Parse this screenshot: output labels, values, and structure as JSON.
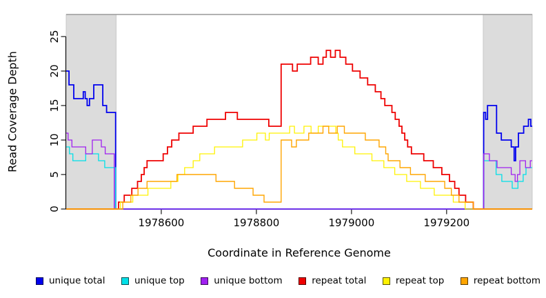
{
  "chart_data": {
    "type": "line",
    "subtype": "step",
    "title": "",
    "xlabel": "Coordinate in Reference Genome",
    "ylabel": "Read Coverage Depth",
    "xlim": [
      1978400,
      1979380
    ],
    "ylim": [
      0,
      28.2
    ],
    "xticks": [
      1978600,
      1978800,
      1979000,
      1979200
    ],
    "yticks": [
      0,
      5,
      10,
      15,
      20,
      25
    ],
    "grid": false,
    "legend_position": "bottom",
    "band_color": "#DCDCDC",
    "band_border": "#C8C8C8",
    "frame_top_color": "#999999",
    "axis_color": "#000000",
    "shaded_regions": [
      {
        "x0": 1978400,
        "x1": 1978505
      },
      {
        "x0": 1979277,
        "x1": 1979380
      }
    ],
    "series": [
      {
        "name": "unique total",
        "color": "#0000EE",
        "width": 1.8,
        "points": [
          [
            1978400,
            20
          ],
          [
            1978406,
            18
          ],
          [
            1978416,
            16
          ],
          [
            1978436,
            17
          ],
          [
            1978440,
            16
          ],
          [
            1978444,
            15
          ],
          [
            1978449,
            16
          ],
          [
            1978458,
            18
          ],
          [
            1978477,
            15
          ],
          [
            1978485,
            14
          ],
          [
            1978504,
            0
          ],
          [
            1979278,
            14
          ],
          [
            1979282,
            13
          ],
          [
            1979286,
            15
          ],
          [
            1979305,
            11
          ],
          [
            1979315,
            10
          ],
          [
            1979336,
            9
          ],
          [
            1979342,
            7
          ],
          [
            1979345,
            9
          ],
          [
            1979351,
            11
          ],
          [
            1979362,
            12
          ],
          [
            1979372,
            13
          ],
          [
            1979377,
            12
          ]
        ]
      },
      {
        "name": "unique top",
        "color": "#00E0E8",
        "width": 1.3,
        "points": [
          [
            1978400,
            9
          ],
          [
            1978407,
            8
          ],
          [
            1978414,
            7
          ],
          [
            1978441,
            8
          ],
          [
            1978468,
            7
          ],
          [
            1978481,
            6
          ],
          [
            1978504,
            0
          ],
          [
            1979278,
            7
          ],
          [
            1979304,
            5
          ],
          [
            1979316,
            4
          ],
          [
            1979338,
            3
          ],
          [
            1979350,
            4
          ],
          [
            1979361,
            5
          ],
          [
            1979367,
            6
          ]
        ]
      },
      {
        "name": "unique bottom",
        "color": "#A020F0",
        "width": 1.3,
        "points": [
          [
            1978400,
            11
          ],
          [
            1978404,
            10
          ],
          [
            1978412,
            9
          ],
          [
            1978441,
            8
          ],
          [
            1978455,
            10
          ],
          [
            1978474,
            9
          ],
          [
            1978482,
            8
          ],
          [
            1978501,
            0
          ],
          [
            1979278,
            8
          ],
          [
            1979290,
            7
          ],
          [
            1979306,
            6
          ],
          [
            1979336,
            5
          ],
          [
            1979344,
            4
          ],
          [
            1979349,
            5
          ],
          [
            1979354,
            7
          ],
          [
            1979366,
            6
          ],
          [
            1979376,
            7
          ]
        ]
      },
      {
        "name": "repeat total",
        "color": "#EE0000",
        "width": 1.8,
        "points": [
          [
            1978400,
            0
          ],
          [
            1978510,
            1
          ],
          [
            1978522,
            2
          ],
          [
            1978538,
            3
          ],
          [
            1978550,
            4
          ],
          [
            1978558,
            5
          ],
          [
            1978564,
            6
          ],
          [
            1978570,
            7
          ],
          [
            1978604,
            8
          ],
          [
            1978613,
            9
          ],
          [
            1978622,
            10
          ],
          [
            1978637,
            11
          ],
          [
            1978667,
            12
          ],
          [
            1978696,
            13
          ],
          [
            1978735,
            14
          ],
          [
            1978760,
            13
          ],
          [
            1978826,
            12
          ],
          [
            1978852,
            21
          ],
          [
            1978876,
            20
          ],
          [
            1978886,
            21
          ],
          [
            1978914,
            22
          ],
          [
            1978930,
            21
          ],
          [
            1978940,
            22
          ],
          [
            1978947,
            23
          ],
          [
            1978956,
            22
          ],
          [
            1978966,
            23
          ],
          [
            1978976,
            22
          ],
          [
            1978988,
            21
          ],
          [
            1979002,
            20
          ],
          [
            1979018,
            19
          ],
          [
            1979034,
            18
          ],
          [
            1979050,
            17
          ],
          [
            1979062,
            16
          ],
          [
            1979070,
            15
          ],
          [
            1979085,
            14
          ],
          [
            1979092,
            13
          ],
          [
            1979100,
            12
          ],
          [
            1979106,
            11
          ],
          [
            1979112,
            10
          ],
          [
            1979118,
            9
          ],
          [
            1979126,
            8
          ],
          [
            1979152,
            7
          ],
          [
            1979172,
            6
          ],
          [
            1979190,
            5
          ],
          [
            1979206,
            4
          ],
          [
            1979217,
            3
          ],
          [
            1979226,
            2
          ],
          [
            1979240,
            1
          ],
          [
            1979256,
            0
          ]
        ]
      },
      {
        "name": "repeat top",
        "color": "#FFF200",
        "width": 1.3,
        "points": [
          [
            1978400,
            0
          ],
          [
            1978514,
            1
          ],
          [
            1978540,
            2
          ],
          [
            1978572,
            3
          ],
          [
            1978620,
            4
          ],
          [
            1978635,
            5
          ],
          [
            1978649,
            6
          ],
          [
            1978667,
            7
          ],
          [
            1978681,
            8
          ],
          [
            1978712,
            9
          ],
          [
            1978771,
            10
          ],
          [
            1978801,
            11
          ],
          [
            1978819,
            10
          ],
          [
            1978827,
            11
          ],
          [
            1978870,
            12
          ],
          [
            1978880,
            11
          ],
          [
            1978900,
            12
          ],
          [
            1978915,
            11
          ],
          [
            1978930,
            12
          ],
          [
            1978967,
            11
          ],
          [
            1978972,
            10
          ],
          [
            1978981,
            9
          ],
          [
            1979007,
            8
          ],
          [
            1979043,
            7
          ],
          [
            1979068,
            6
          ],
          [
            1979091,
            5
          ],
          [
            1979116,
            4
          ],
          [
            1979145,
            3
          ],
          [
            1979174,
            2
          ],
          [
            1979214,
            1
          ],
          [
            1979239,
            0
          ]
        ]
      },
      {
        "name": "repeat bottom",
        "color": "#FFA500",
        "width": 1.4,
        "points": [
          [
            1978400,
            0
          ],
          [
            1978519,
            1
          ],
          [
            1978536,
            2
          ],
          [
            1978551,
            3
          ],
          [
            1978570,
            4
          ],
          [
            1978633,
            5
          ],
          [
            1978715,
            4
          ],
          [
            1978754,
            3
          ],
          [
            1978793,
            2
          ],
          [
            1978816,
            1
          ],
          [
            1978852,
            10
          ],
          [
            1978874,
            9
          ],
          [
            1978884,
            10
          ],
          [
            1978910,
            11
          ],
          [
            1978940,
            12
          ],
          [
            1978952,
            11
          ],
          [
            1978970,
            12
          ],
          [
            1978985,
            11
          ],
          [
            1979029,
            10
          ],
          [
            1979058,
            9
          ],
          [
            1979072,
            8
          ],
          [
            1979077,
            7
          ],
          [
            1979102,
            6
          ],
          [
            1979124,
            5
          ],
          [
            1979155,
            4
          ],
          [
            1979196,
            3
          ],
          [
            1979210,
            2
          ],
          [
            1979226,
            1
          ],
          [
            1979256,
            0
          ]
        ]
      }
    ]
  },
  "legend": {
    "items": [
      {
        "label": "unique total",
        "color": "#0000EE"
      },
      {
        "label": "unique top",
        "color": "#00E0E8"
      },
      {
        "label": "unique bottom",
        "color": "#A020F0"
      },
      {
        "label": "repeat total",
        "color": "#EE0000"
      },
      {
        "label": "repeat top",
        "color": "#FFF200"
      },
      {
        "label": "repeat bottom",
        "color": "#FFA500"
      }
    ]
  }
}
